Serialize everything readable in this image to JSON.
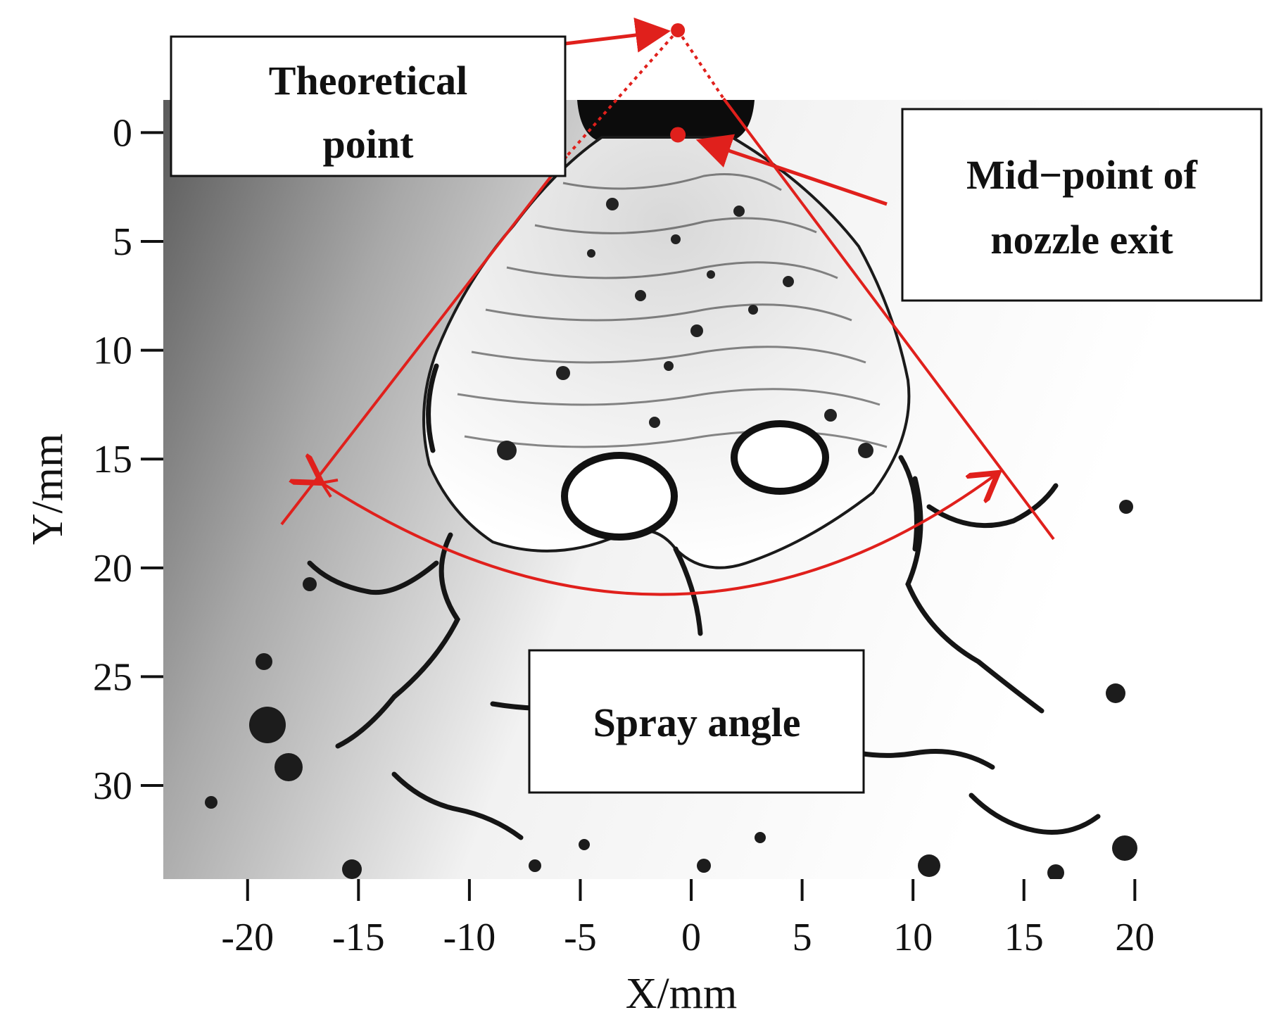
{
  "axes": {
    "xlabel": "X/mm",
    "ylabel": "Y/mm",
    "x_ticks": [
      "-20",
      "-15",
      "-10",
      "-5",
      "0",
      "5",
      "10",
      "15",
      "20"
    ],
    "x_tick_values": [
      -20,
      -15,
      -10,
      -5,
      0,
      5,
      10,
      15,
      20
    ],
    "y_ticks": [
      "0",
      "5",
      "10",
      "15",
      "20",
      "25",
      "30"
    ],
    "y_tick_values": [
      0,
      5,
      10,
      15,
      20,
      25,
      30
    ],
    "xlim": [
      -23.8,
      21.1
    ],
    "ylim": [
      -1.5,
      34.3
    ]
  },
  "annotations": {
    "theoretical_point": {
      "line1": "Theoretical",
      "line2": "point",
      "x": -0.6,
      "y": -4.7
    },
    "nozzle_mid_point": {
      "line1": "Mid−point of",
      "line2": "nozzle exit",
      "x": -0.6,
      "y": 0.1
    },
    "spray_angle": {
      "label": "Spray angle"
    }
  },
  "colors": {
    "annotation": "#e0201c",
    "text": "#111111",
    "photo_dark": "#4a4a4a",
    "photo_light": "#ffffff"
  }
}
